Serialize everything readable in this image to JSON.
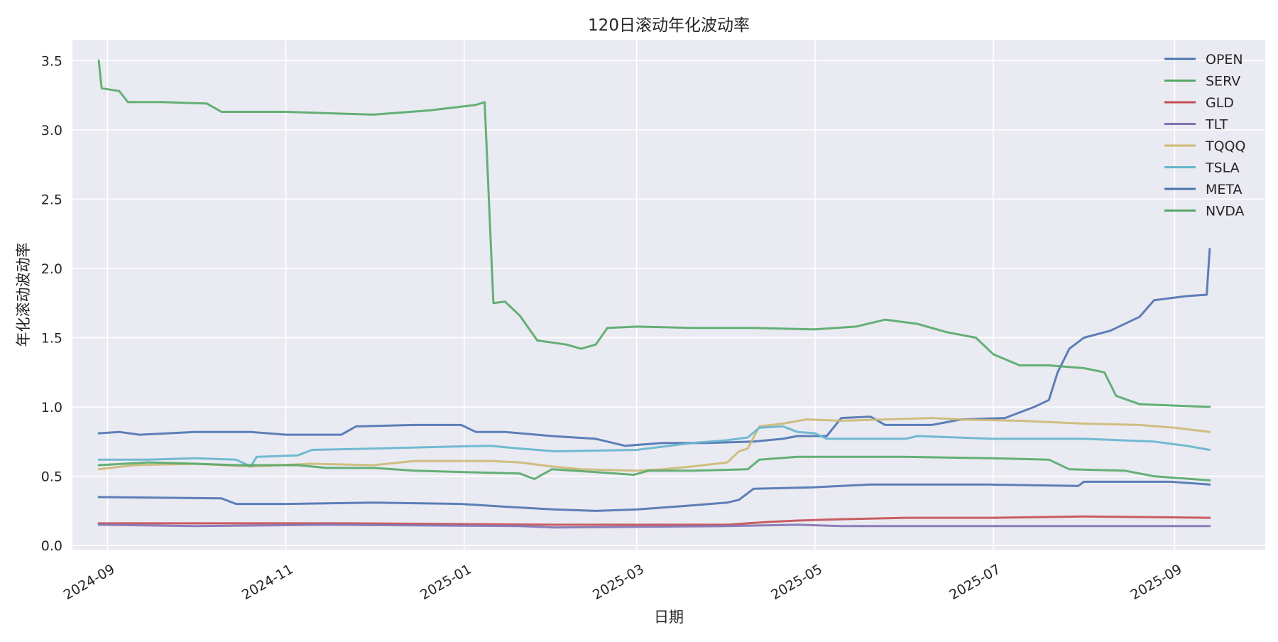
{
  "chart_data": {
    "type": "line",
    "title": "120日滚动年化波动率",
    "xlabel": "日期",
    "ylabel": "年化滚动波动率",
    "x_axis_type": "date",
    "xlim": [
      "2024-08-20",
      "2025-10-02"
    ],
    "ylim": [
      -0.03,
      3.65
    ],
    "x_ticks": [
      "2024-09-01",
      "2024-11-01",
      "2025-01-01",
      "2025-03-01",
      "2025-05-01",
      "2025-07-01",
      "2025-09-01"
    ],
    "x_tick_labels": [
      "2024-09",
      "2024-11",
      "2025-01",
      "2025-03",
      "2025-05",
      "2025-07",
      "2025-09"
    ],
    "y_ticks": [
      0.0,
      0.5,
      1.0,
      1.5,
      2.0,
      2.5,
      3.0,
      3.5
    ],
    "y_tick_labels": [
      "0.0",
      "0.5",
      "1.0",
      "1.5",
      "2.0",
      "2.5",
      "3.0",
      "3.5"
    ],
    "grid": true,
    "legend_position": "top-right",
    "colors": {
      "plot_background": "#EAEAF2",
      "grid": "#FFFFFF",
      "blue": "#4C72B0",
      "green": "#55A868",
      "red": "#C44E52",
      "purple": "#8172B3",
      "tan": "#CCB974",
      "cyan": "#64B5CD"
    },
    "series": [
      {
        "name": "OPEN",
        "color": "#4C72B0",
        "points": [
          [
            "2024-08-29",
            0.81
          ],
          [
            "2024-09-05",
            0.82
          ],
          [
            "2024-09-12",
            0.8
          ],
          [
            "2024-10-01",
            0.82
          ],
          [
            "2024-10-20",
            0.82
          ],
          [
            "2024-11-01",
            0.8
          ],
          [
            "2024-11-20",
            0.8
          ],
          [
            "2024-11-25",
            0.86
          ],
          [
            "2024-12-15",
            0.87
          ],
          [
            "2024-12-31",
            0.87
          ],
          [
            "2025-01-05",
            0.82
          ],
          [
            "2025-01-15",
            0.82
          ],
          [
            "2025-01-31",
            0.79
          ],
          [
            "2025-02-15",
            0.77
          ],
          [
            "2025-02-25",
            0.72
          ],
          [
            "2025-03-10",
            0.74
          ],
          [
            "2025-03-25",
            0.74
          ],
          [
            "2025-04-10",
            0.75
          ],
          [
            "2025-04-20",
            0.77
          ],
          [
            "2025-04-25",
            0.79
          ],
          [
            "2025-05-05",
            0.79
          ],
          [
            "2025-05-10",
            0.92
          ],
          [
            "2025-05-20",
            0.93
          ],
          [
            "2025-05-25",
            0.87
          ],
          [
            "2025-06-10",
            0.87
          ],
          [
            "2025-06-20",
            0.91
          ],
          [
            "2025-07-05",
            0.92
          ],
          [
            "2025-07-15",
            1.0
          ],
          [
            "2025-07-20",
            1.05
          ],
          [
            "2025-07-23",
            1.25
          ],
          [
            "2025-07-27",
            1.42
          ],
          [
            "2025-08-01",
            1.5
          ],
          [
            "2025-08-10",
            1.55
          ],
          [
            "2025-08-20",
            1.65
          ],
          [
            "2025-08-25",
            1.77
          ],
          [
            "2025-09-05",
            1.8
          ],
          [
            "2025-09-12",
            1.81
          ],
          [
            "2025-09-13",
            2.14
          ]
        ]
      },
      {
        "name": "SERV",
        "color": "#55A868",
        "points": [
          [
            "2024-08-29",
            3.5
          ],
          [
            "2024-08-30",
            3.3
          ],
          [
            "2024-09-05",
            3.28
          ],
          [
            "2024-09-08",
            3.2
          ],
          [
            "2024-09-20",
            3.2
          ],
          [
            "2024-10-05",
            3.19
          ],
          [
            "2024-10-10",
            3.13
          ],
          [
            "2024-11-01",
            3.13
          ],
          [
            "2024-11-15",
            3.12
          ],
          [
            "2024-12-01",
            3.11
          ],
          [
            "2024-12-20",
            3.14
          ],
          [
            "2025-01-05",
            3.18
          ],
          [
            "2025-01-08",
            3.2
          ],
          [
            "2025-01-11",
            1.75
          ],
          [
            "2025-01-15",
            1.76
          ],
          [
            "2025-01-20",
            1.66
          ],
          [
            "2025-01-26",
            1.48
          ],
          [
            "2025-02-05",
            1.45
          ],
          [
            "2025-02-10",
            1.42
          ],
          [
            "2025-02-15",
            1.45
          ],
          [
            "2025-02-19",
            1.57
          ],
          [
            "2025-03-01",
            1.58
          ],
          [
            "2025-03-20",
            1.57
          ],
          [
            "2025-04-10",
            1.57
          ],
          [
            "2025-05-01",
            1.56
          ],
          [
            "2025-05-15",
            1.58
          ],
          [
            "2025-05-25",
            1.63
          ],
          [
            "2025-06-05",
            1.6
          ],
          [
            "2025-06-15",
            1.54
          ],
          [
            "2025-06-25",
            1.5
          ],
          [
            "2025-07-01",
            1.38
          ],
          [
            "2025-07-10",
            1.3
          ],
          [
            "2025-07-20",
            1.3
          ],
          [
            "2025-08-01",
            1.28
          ],
          [
            "2025-08-08",
            1.25
          ],
          [
            "2025-08-12",
            1.08
          ],
          [
            "2025-08-20",
            1.02
          ],
          [
            "2025-09-01",
            1.01
          ],
          [
            "2025-09-13",
            1.0
          ]
        ]
      },
      {
        "name": "GLD",
        "color": "#C44E52",
        "points": [
          [
            "2024-08-29",
            0.16
          ],
          [
            "2024-10-01",
            0.16
          ],
          [
            "2024-11-25",
            0.16
          ],
          [
            "2025-02-01",
            0.15
          ],
          [
            "2025-04-01",
            0.15
          ],
          [
            "2025-04-08",
            0.16
          ],
          [
            "2025-04-15",
            0.17
          ],
          [
            "2025-04-25",
            0.18
          ],
          [
            "2025-05-10",
            0.19
          ],
          [
            "2025-06-01",
            0.2
          ],
          [
            "2025-07-01",
            0.2
          ],
          [
            "2025-08-01",
            0.21
          ],
          [
            "2025-09-13",
            0.2
          ]
        ]
      },
      {
        "name": "TLT",
        "color": "#8172B3",
        "points": [
          [
            "2024-08-29",
            0.15
          ],
          [
            "2024-10-01",
            0.14
          ],
          [
            "2024-11-15",
            0.15
          ],
          [
            "2025-01-20",
            0.14
          ],
          [
            "2025-02-01",
            0.13
          ],
          [
            "2025-04-01",
            0.14
          ],
          [
            "2025-04-25",
            0.15
          ],
          [
            "2025-05-10",
            0.14
          ],
          [
            "2025-07-01",
            0.14
          ],
          [
            "2025-09-13",
            0.14
          ]
        ]
      },
      {
        "name": "TQQQ",
        "color": "#CCB974",
        "points": [
          [
            "2024-08-29",
            0.55
          ],
          [
            "2024-09-10",
            0.58
          ],
          [
            "2024-10-01",
            0.59
          ],
          [
            "2024-10-20",
            0.57
          ],
          [
            "2024-11-10",
            0.59
          ],
          [
            "2024-12-01",
            0.58
          ],
          [
            "2024-12-15",
            0.61
          ],
          [
            "2025-01-10",
            0.61
          ],
          [
            "2025-01-20",
            0.6
          ],
          [
            "2025-01-31",
            0.57
          ],
          [
            "2025-02-10",
            0.55
          ],
          [
            "2025-03-01",
            0.54
          ],
          [
            "2025-03-10",
            0.55
          ],
          [
            "2025-03-20",
            0.57
          ],
          [
            "2025-04-01",
            0.6
          ],
          [
            "2025-04-05",
            0.68
          ],
          [
            "2025-04-08",
            0.7
          ],
          [
            "2025-04-12",
            0.86
          ],
          [
            "2025-04-20",
            0.88
          ],
          [
            "2025-04-28",
            0.91
          ],
          [
            "2025-05-10",
            0.9
          ],
          [
            "2025-06-10",
            0.92
          ],
          [
            "2025-06-20",
            0.91
          ],
          [
            "2025-07-10",
            0.9
          ],
          [
            "2025-08-01",
            0.88
          ],
          [
            "2025-08-20",
            0.87
          ],
          [
            "2025-09-01",
            0.85
          ],
          [
            "2025-09-13",
            0.82
          ]
        ]
      },
      {
        "name": "TSLA",
        "color": "#64B5CD",
        "points": [
          [
            "2024-08-29",
            0.62
          ],
          [
            "2024-09-15",
            0.62
          ],
          [
            "2024-10-01",
            0.63
          ],
          [
            "2024-10-15",
            0.62
          ],
          [
            "2024-10-20",
            0.57
          ],
          [
            "2024-10-22",
            0.64
          ],
          [
            "2024-11-05",
            0.65
          ],
          [
            "2024-11-10",
            0.69
          ],
          [
            "2024-12-01",
            0.7
          ],
          [
            "2024-12-20",
            0.71
          ],
          [
            "2025-01-10",
            0.72
          ],
          [
            "2025-01-20",
            0.7
          ],
          [
            "2025-02-01",
            0.68
          ],
          [
            "2025-03-01",
            0.69
          ],
          [
            "2025-03-20",
            0.74
          ],
          [
            "2025-04-01",
            0.76
          ],
          [
            "2025-04-08",
            0.78
          ],
          [
            "2025-04-12",
            0.85
          ],
          [
            "2025-04-20",
            0.86
          ],
          [
            "2025-04-25",
            0.82
          ],
          [
            "2025-05-01",
            0.81
          ],
          [
            "2025-05-05",
            0.77
          ],
          [
            "2025-06-01",
            0.77
          ],
          [
            "2025-06-05",
            0.79
          ],
          [
            "2025-07-01",
            0.77
          ],
          [
            "2025-08-01",
            0.77
          ],
          [
            "2025-08-25",
            0.75
          ],
          [
            "2025-09-05",
            0.72
          ],
          [
            "2025-09-13",
            0.69
          ]
        ]
      },
      {
        "name": "META",
        "color": "#4C72B0",
        "points": [
          [
            "2024-08-29",
            0.35
          ],
          [
            "2024-10-10",
            0.34
          ],
          [
            "2024-10-15",
            0.3
          ],
          [
            "2024-11-01",
            0.3
          ],
          [
            "2024-12-01",
            0.31
          ],
          [
            "2024-12-31",
            0.3
          ],
          [
            "2025-01-15",
            0.28
          ],
          [
            "2025-02-01",
            0.26
          ],
          [
            "2025-02-15",
            0.25
          ],
          [
            "2025-03-01",
            0.26
          ],
          [
            "2025-03-20",
            0.29
          ],
          [
            "2025-04-01",
            0.31
          ],
          [
            "2025-04-05",
            0.33
          ],
          [
            "2025-04-10",
            0.41
          ],
          [
            "2025-04-30",
            0.42
          ],
          [
            "2025-05-20",
            0.44
          ],
          [
            "2025-06-30",
            0.44
          ],
          [
            "2025-07-30",
            0.43
          ],
          [
            "2025-08-01",
            0.46
          ],
          [
            "2025-08-31",
            0.46
          ],
          [
            "2025-09-13",
            0.44
          ]
        ]
      },
      {
        "name": "NVDA",
        "color": "#55A868",
        "points": [
          [
            "2024-08-29",
            0.58
          ],
          [
            "2024-09-15",
            0.6
          ],
          [
            "2024-10-01",
            0.59
          ],
          [
            "2024-10-15",
            0.58
          ],
          [
            "2024-10-25",
            0.58
          ],
          [
            "2024-11-05",
            0.58
          ],
          [
            "2024-11-15",
            0.56
          ],
          [
            "2024-12-01",
            0.56
          ],
          [
            "2024-12-15",
            0.54
          ],
          [
            "2025-01-01",
            0.53
          ],
          [
            "2025-01-20",
            0.52
          ],
          [
            "2025-01-25",
            0.48
          ],
          [
            "2025-01-31",
            0.55
          ],
          [
            "2025-02-15",
            0.53
          ],
          [
            "2025-02-28",
            0.51
          ],
          [
            "2025-03-05",
            0.54
          ],
          [
            "2025-03-20",
            0.54
          ],
          [
            "2025-04-08",
            0.55
          ],
          [
            "2025-04-12",
            0.62
          ],
          [
            "2025-04-25",
            0.64
          ],
          [
            "2025-05-31",
            0.64
          ],
          [
            "2025-06-30",
            0.63
          ],
          [
            "2025-07-20",
            0.62
          ],
          [
            "2025-07-27",
            0.55
          ],
          [
            "2025-08-15",
            0.54
          ],
          [
            "2025-08-25",
            0.5
          ],
          [
            "2025-09-13",
            0.47
          ]
        ]
      }
    ]
  }
}
